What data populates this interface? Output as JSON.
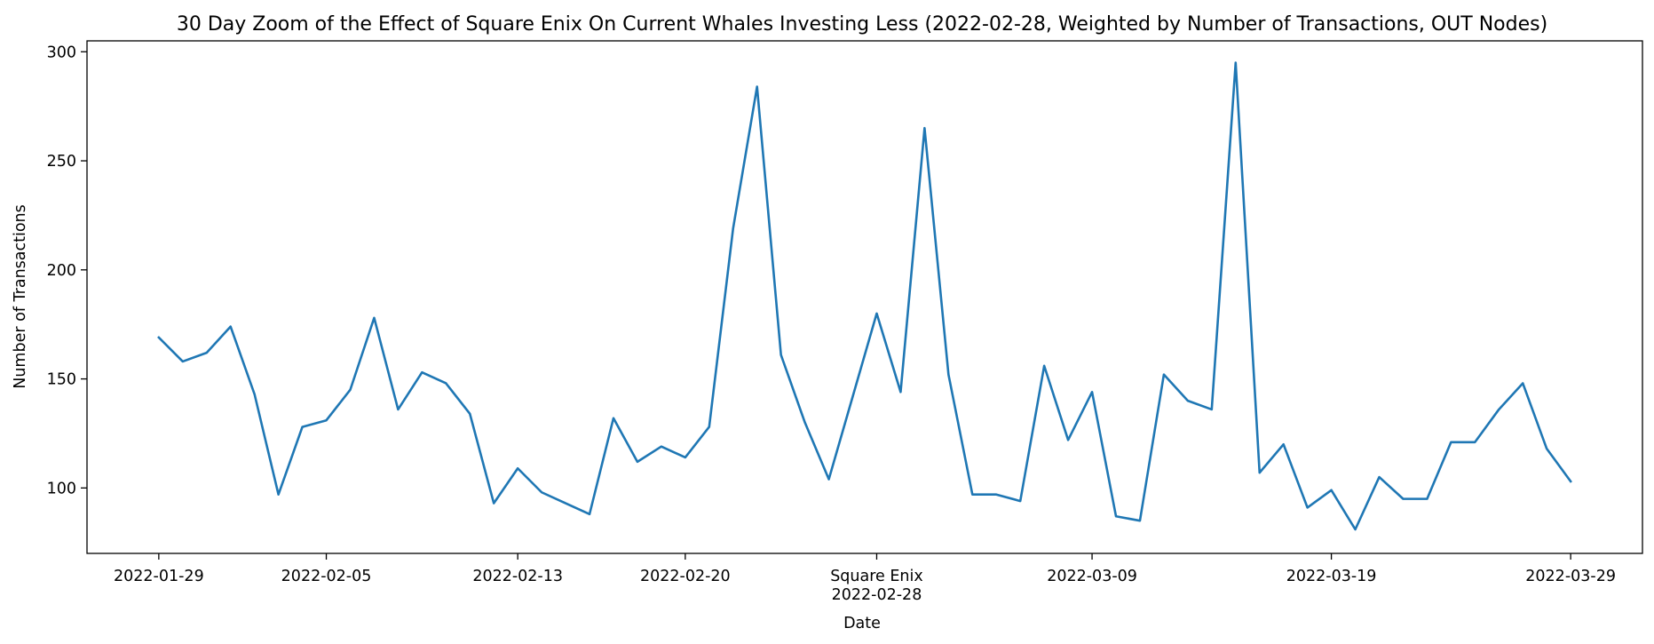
{
  "chart_data": {
    "type": "line",
    "title": "30 Day Zoom of the Effect of Square Enix On Current Whales Investing Less (2022-02-28, Weighted by Number of Transactions, OUT Nodes)",
    "xlabel": "Date",
    "ylabel": "Number of Transactions",
    "xlim": [
      "2022-01-26",
      "2022-04-01"
    ],
    "ylim": [
      70,
      305
    ],
    "grid": false,
    "series_color": "#1f77b4",
    "x_ticks": [
      {
        "date": "2022-01-29",
        "label": "2022-01-29"
      },
      {
        "date": "2022-02-05",
        "label": "2022-02-05"
      },
      {
        "date": "2022-02-13",
        "label": "2022-02-13"
      },
      {
        "date": "2022-02-20",
        "label": "2022-02-20"
      },
      {
        "date": "2022-02-28",
        "label": "Square Enix",
        "label2": "2022-02-28"
      },
      {
        "date": "2022-03-09",
        "label": "2022-03-09"
      },
      {
        "date": "2022-03-19",
        "label": "2022-03-19"
      },
      {
        "date": "2022-03-29",
        "label": "2022-03-29"
      }
    ],
    "y_ticks": [
      100,
      150,
      200,
      250,
      300
    ],
    "series": [
      {
        "x": [
          "2022-01-29",
          "2022-01-30",
          "2022-01-31",
          "2022-02-01",
          "2022-02-02",
          "2022-02-03",
          "2022-02-04",
          "2022-02-05",
          "2022-02-06",
          "2022-02-07",
          "2022-02-08",
          "2022-02-09",
          "2022-02-10",
          "2022-02-11",
          "2022-02-12",
          "2022-02-13",
          "2022-02-14",
          "2022-02-15",
          "2022-02-16",
          "2022-02-17",
          "2022-02-18",
          "2022-02-19",
          "2022-02-20",
          "2022-02-21",
          "2022-02-22",
          "2022-02-23",
          "2022-02-24",
          "2022-02-25",
          "2022-02-26",
          "2022-02-27",
          "2022-02-28",
          "2022-03-01",
          "2022-03-02",
          "2022-03-03",
          "2022-03-04",
          "2022-03-05",
          "2022-03-06",
          "2022-03-07",
          "2022-03-08",
          "2022-03-09",
          "2022-03-10",
          "2022-03-11",
          "2022-03-12",
          "2022-03-13",
          "2022-03-14",
          "2022-03-15",
          "2022-03-16",
          "2022-03-17",
          "2022-03-18",
          "2022-03-19",
          "2022-03-20",
          "2022-03-21",
          "2022-03-22",
          "2022-03-23",
          "2022-03-24",
          "2022-03-25",
          "2022-03-26",
          "2022-03-27",
          "2022-03-28",
          "2022-03-29"
        ],
        "values": [
          169,
          158,
          162,
          174,
          143,
          97,
          128,
          131,
          145,
          178,
          136,
          153,
          148,
          134,
          93,
          109,
          98,
          93,
          88,
          132,
          112,
          119,
          114,
          128,
          219,
          284,
          161,
          130,
          104,
          142,
          180,
          144,
          265,
          152,
          97,
          97,
          94,
          156,
          122,
          144,
          87,
          85,
          152,
          140,
          136,
          295,
          107,
          120,
          91,
          99,
          81,
          105,
          95,
          95,
          121,
          121,
          136,
          148,
          118,
          103
        ]
      }
    ]
  }
}
